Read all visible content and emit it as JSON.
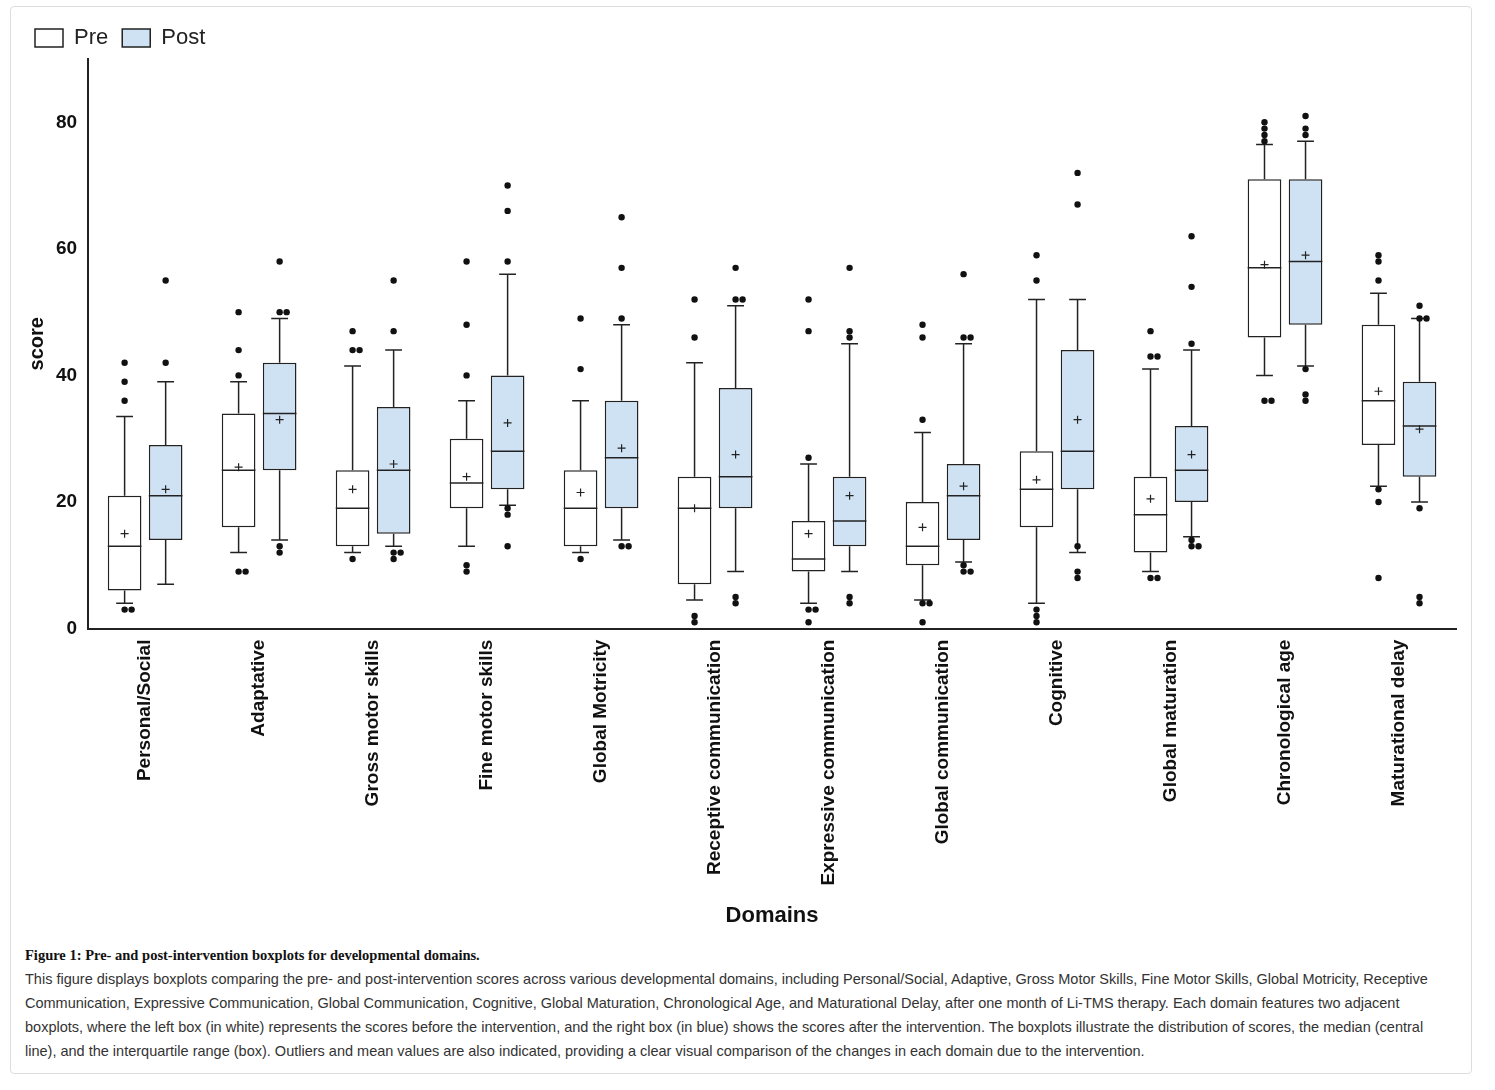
{
  "chart_data": {
    "type": "boxplot",
    "x_label": "Domains",
    "y_label": "score",
    "categories": [
      "Personal/Social",
      "Adaptative",
      "Gross motor skills",
      "Fine motor skills",
      "Global Motricity",
      "Receptive communication",
      "Expressive communication",
      "Global communication",
      "Cognitive",
      "Global maturation",
      "Chronological age",
      "Maturational delay"
    ],
    "series": [
      {
        "name": "Pre",
        "color": "#ffffff",
        "values": [
          {
            "min": 4,
            "q1": 6,
            "median": 13,
            "q3": 21,
            "max": 33.5,
            "mean": 15,
            "outliers": [
              3,
              3,
              36,
              39,
              42
            ]
          },
          {
            "min": 12,
            "q1": 16,
            "median": 25,
            "q3": 34,
            "max": 39,
            "mean": 25.5,
            "outliers": [
              9,
              9,
              40,
              44,
              50
            ]
          },
          {
            "min": 12,
            "q1": 13,
            "median": 19,
            "q3": 25,
            "max": 41.5,
            "mean": 22,
            "outliers": [
              11,
              44,
              44,
              47
            ]
          },
          {
            "min": 13,
            "q1": 19,
            "median": 23,
            "q3": 30,
            "max": 36,
            "mean": 24,
            "outliers": [
              9,
              10,
              40,
              48,
              58
            ]
          },
          {
            "min": 12,
            "q1": 13,
            "median": 19,
            "q3": 25,
            "max": 36,
            "mean": 21.5,
            "outliers": [
              11,
              41,
              49
            ]
          },
          {
            "min": 4.5,
            "q1": 7,
            "median": 19,
            "q3": 24,
            "max": 42,
            "mean": 19,
            "outliers": [
              1,
              2,
              46,
              52
            ]
          },
          {
            "min": 4,
            "q1": 9,
            "median": 11,
            "q3": 17,
            "max": 26,
            "mean": 15,
            "outliers": [
              1,
              3,
              3,
              27,
              47,
              52
            ]
          },
          {
            "min": 4.5,
            "q1": 10,
            "median": 13,
            "q3": 20,
            "max": 31,
            "mean": 16,
            "outliers": [
              1,
              4,
              4,
              33,
              46,
              48
            ]
          },
          {
            "min": 4,
            "q1": 16,
            "median": 22,
            "q3": 28,
            "max": 52,
            "mean": 23.5,
            "outliers": [
              1,
              2,
              3,
              55,
              59
            ]
          },
          {
            "min": 9,
            "q1": 12,
            "median": 18,
            "q3": 24,
            "max": 41,
            "mean": 20.5,
            "outliers": [
              8,
              8,
              43,
              43,
              47
            ]
          },
          {
            "min": 40,
            "q1": 46,
            "median": 57,
            "q3": 71,
            "max": 76.5,
            "mean": 57.5,
            "outliers": [
              36,
              36,
              77,
              78,
              79,
              80
            ]
          },
          {
            "min": 22.5,
            "q1": 29,
            "median": 36,
            "q3": 48,
            "max": 53,
            "mean": 37.5,
            "outliers": [
              8,
              20,
              22,
              55,
              58,
              59
            ]
          }
        ]
      },
      {
        "name": "Post",
        "color": "#cfe2f3",
        "values": [
          {
            "min": 7,
            "q1": 14,
            "median": 21,
            "q3": 29,
            "max": 39,
            "mean": 22,
            "outliers": [
              42,
              55
            ]
          },
          {
            "min": 14,
            "q1": 25,
            "median": 34,
            "q3": 42,
            "max": 49,
            "mean": 33,
            "outliers": [
              12,
              13,
              50,
              50,
              58
            ]
          },
          {
            "min": 13,
            "q1": 15,
            "median": 25,
            "q3": 35,
            "max": 44,
            "mean": 26,
            "outliers": [
              11,
              12,
              12,
              47,
              55
            ]
          },
          {
            "min": 19.5,
            "q1": 22,
            "median": 28,
            "q3": 40,
            "max": 56,
            "mean": 32.5,
            "outliers": [
              13,
              18,
              19,
              58,
              66,
              70
            ]
          },
          {
            "min": 14,
            "q1": 19,
            "median": 27,
            "q3": 36,
            "max": 48,
            "mean": 28.5,
            "outliers": [
              13,
              13,
              49,
              57,
              65
            ]
          },
          {
            "min": 9,
            "q1": 19,
            "median": 24,
            "q3": 38,
            "max": 51,
            "mean": 27.5,
            "outliers": [
              4,
              5,
              52,
              52,
              57
            ]
          },
          {
            "min": 9,
            "q1": 13,
            "median": 17,
            "q3": 24,
            "max": 45,
            "mean": 21,
            "outliers": [
              4,
              5,
              46,
              47,
              57
            ]
          },
          {
            "min": 10.5,
            "q1": 14,
            "median": 21,
            "q3": 26,
            "max": 45,
            "mean": 22.5,
            "outliers": [
              9,
              9,
              10,
              46,
              46,
              56
            ]
          },
          {
            "min": 12,
            "q1": 22,
            "median": 28,
            "q3": 44,
            "max": 52,
            "mean": 33,
            "outliers": [
              8,
              9,
              13,
              67,
              72
            ]
          },
          {
            "min": 14.5,
            "q1": 20,
            "median": 25,
            "q3": 32,
            "max": 44,
            "mean": 27.5,
            "outliers": [
              13,
              13,
              14,
              45,
              54,
              62
            ]
          },
          {
            "min": 41.5,
            "q1": 48,
            "median": 58,
            "q3": 71,
            "max": 77,
            "mean": 59,
            "outliers": [
              36,
              37,
              41,
              78,
              79,
              81
            ]
          },
          {
            "min": 20,
            "q1": 24,
            "median": 32,
            "q3": 39,
            "max": 49,
            "mean": 31.5,
            "outliers": [
              4,
              5,
              19,
              49,
              49,
              51
            ]
          }
        ]
      }
    ],
    "ylim": [
      0,
      90
    ],
    "yticks": [
      0,
      20,
      40,
      60,
      80
    ],
    "grid": false,
    "legend": "top-left"
  },
  "figure_caption": {
    "title": "Figure 1: Pre- and post-intervention boxplots for developmental domains.",
    "text": "This figure displays boxplots comparing the pre- and post-intervention scores across various developmental domains, including Personal/Social, Adaptive, Gross Motor Skills, Fine Motor Skills, Global Motricity, Receptive Communication, Expressive Communication, Global Communication, Cognitive, Global Maturation, Chronological Age, and Maturational Delay, after one month of Li-TMS therapy. Each domain features two adjacent boxplots, where the left box (in white) represents the scores before the intervention, and the right box (in blue) shows the scores after the intervention. The boxplots illustrate the distribution of scores, the median (central line), and the interquartile range (box). Outliers and mean values are also indicated, providing a clear visual comparison of the changes in each domain due to the intervention."
  }
}
